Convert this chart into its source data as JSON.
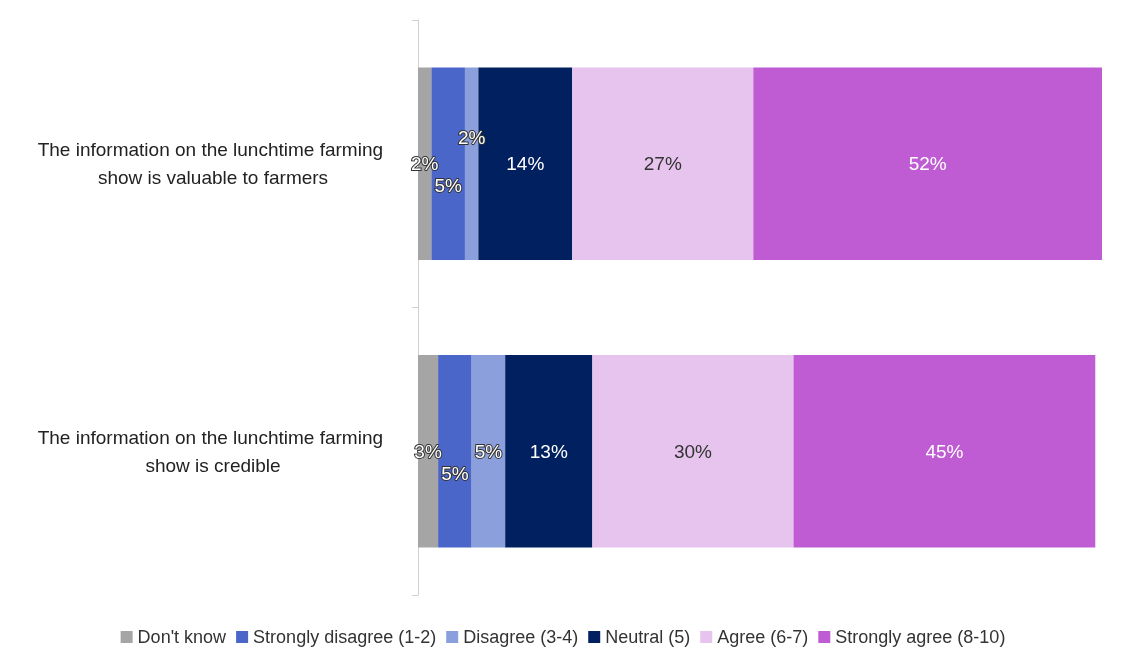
{
  "chart_data": {
    "type": "bar",
    "orientation": "horizontal",
    "stacked": true,
    "legend": "bottom",
    "grid": false,
    "tick_labels": "y",
    "categories": [
      "The information on the lunchtime farming show is valuable to farmers",
      "The information on the lunchtime farming show is credible"
    ],
    "series": [
      {
        "name": "Don't know",
        "color": "#a5a5a5",
        "values": [
          2,
          3
        ],
        "value_labels": [
          "2%",
          "3%"
        ]
      },
      {
        "name": "Strongly disagree (1-2)",
        "color": "#4a66c8",
        "values": [
          5,
          5
        ],
        "value_labels": [
          "5%",
          "5%"
        ]
      },
      {
        "name": "Disagree (3-4)",
        "color": "#8a9fdc",
        "values": [
          2,
          5
        ],
        "value_labels": [
          "2%",
          "5%"
        ]
      },
      {
        "name": "Neutral (5)",
        "color": "#00205f",
        "values": [
          14,
          13
        ],
        "value_labels": [
          "14%",
          "13%"
        ]
      },
      {
        "name": "Agree (6-7)",
        "color": "#e6c4ee",
        "values": [
          27,
          30
        ],
        "value_labels": [
          "27%",
          "30%"
        ]
      },
      {
        "name": "Strongly agree (8-10)",
        "color": "#bf5cd4",
        "values": [
          52,
          45
        ],
        "value_labels": [
          "52%",
          "45%"
        ]
      }
    ]
  }
}
